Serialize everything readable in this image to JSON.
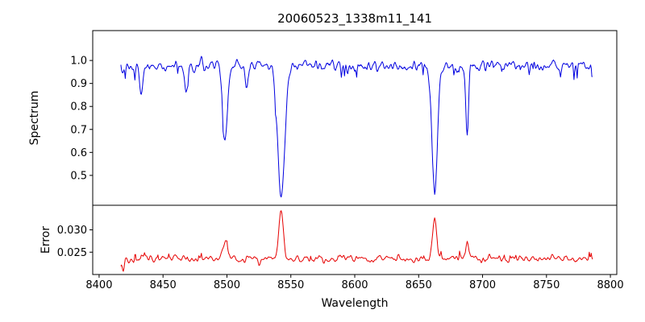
{
  "figure": {
    "background": "#ffffff"
  },
  "chart_data": {
    "type": "line",
    "title": "20060523_1338m11_141",
    "xlabel": "Wavelength",
    "xlim": [
      8395,
      8805
    ],
    "x_ticks": [
      8400,
      8450,
      8500,
      8550,
      8600,
      8650,
      8700,
      8750,
      8800
    ],
    "x_tick_labels": [
      "8400",
      "8450",
      "8500",
      "8550",
      "8600",
      "8650",
      "8700",
      "8750",
      "8800"
    ],
    "x_start": 8417,
    "x_end": 8786,
    "x_step": 0.5,
    "noise_seed": 20060523,
    "panels": [
      {
        "name": "spectrum",
        "ylabel": "Spectrum",
        "line_color": "#0000e0",
        "ylim": [
          0.37,
          1.13
        ],
        "y_ticks": [
          0.5,
          0.6,
          0.7,
          0.8,
          0.9,
          1.0
        ],
        "y_tick_labels": [
          "0.5",
          "0.6",
          "0.7",
          "0.8",
          "0.9",
          "1.0"
        ],
        "continuum": 0.975,
        "noise_sigma": 0.013,
        "spike_prob": 0.05,
        "spike_amp": 0.06,
        "absorption_lines": [
          {
            "center": 8433.0,
            "depth": 0.13,
            "sigma": 1.2
          },
          {
            "center": 8468.0,
            "depth": 0.11,
            "sigma": 1.2
          },
          {
            "center": 8498.5,
            "depth": 0.33,
            "sigma": 1.8
          },
          {
            "center": 8515.0,
            "depth": 0.1,
            "sigma": 1.2
          },
          {
            "center": 8542.5,
            "depth": 0.56,
            "sigma": 2.8
          },
          {
            "center": 8662.5,
            "depth": 0.53,
            "sigma": 2.2
          },
          {
            "center": 8688.0,
            "depth": 0.3,
            "sigma": 1.1
          }
        ]
      },
      {
        "name": "error",
        "ylabel": "Error",
        "line_color": "#e60000",
        "ylim": [
          0.02,
          0.0355
        ],
        "y_ticks": [
          0.025,
          0.03
        ],
        "y_tick_labels": [
          "0.025",
          "0.030"
        ],
        "baseline": 0.0235,
        "noise_sigma": 0.00045,
        "spike_prob": 0.05,
        "spike_amp": 0.0016,
        "error_peaks": [
          {
            "center": 8419.0,
            "height": -0.002,
            "sigma": 1.0
          },
          {
            "center": 8498.5,
            "height": 0.0036,
            "sigma": 1.6
          },
          {
            "center": 8542.5,
            "height": 0.0105,
            "sigma": 1.8
          },
          {
            "center": 8662.5,
            "height": 0.0092,
            "sigma": 1.7
          },
          {
            "center": 8688.0,
            "height": 0.0035,
            "sigma": 1.0
          }
        ]
      }
    ]
  }
}
